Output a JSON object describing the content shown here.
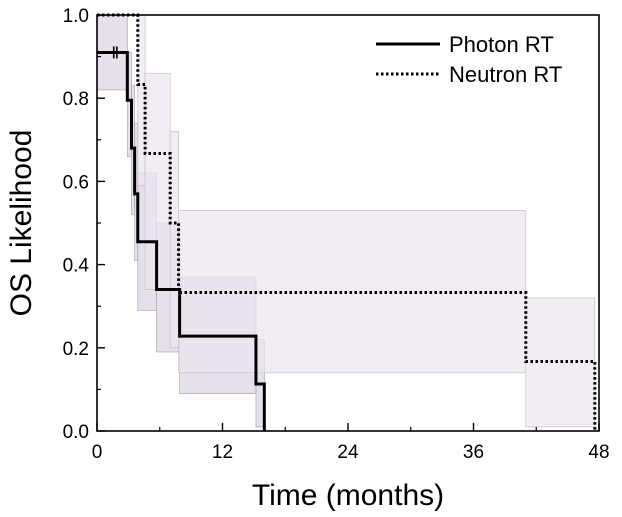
{
  "chart_data": {
    "type": "line",
    "subtype": "kaplan-meier-step",
    "title": "",
    "xlabel": "Time (months)",
    "ylabel": "OS Likelihood",
    "xlim": [
      0,
      48
    ],
    "ylim": [
      0,
      1.0
    ],
    "x_ticks": [
      0,
      12,
      24,
      36,
      48
    ],
    "x_tick_labels": [
      "0",
      "12",
      "24",
      "36",
      "48"
    ],
    "y_ticks": [
      0,
      0.2,
      0.4,
      0.6,
      0.8,
      1.0
    ],
    "y_tick_labels": [
      "0.0",
      "0.2",
      "0.4",
      "0.6",
      "0.8",
      "1.0"
    ],
    "legend_position": "top-right",
    "series": [
      {
        "name": "Photon RT",
        "style": "solid",
        "color": "#000000",
        "band_color": "#ddd6e4",
        "band_stroke": "#b0b0b0",
        "steps_x": [
          0,
          2.9,
          3.3,
          3.6,
          3.9,
          5.7,
          7.9,
          15.2,
          16.0
        ],
        "steps_y": [
          0.91,
          0.795,
          0.68,
          0.57,
          0.455,
          0.34,
          0.228,
          0.113,
          0.0
        ],
        "ci_lower": [
          0.82,
          0.66,
          0.52,
          0.41,
          0.29,
          0.19,
          0.09,
          0.01,
          0.0
        ],
        "ci_upper": [
          1.0,
          0.91,
          0.83,
          0.74,
          0.62,
          0.5,
          0.37,
          0.22,
          0.0
        ],
        "censor_x": [
          1.6,
          1.9
        ],
        "censor_y": [
          0.91,
          0.91
        ]
      },
      {
        "name": "Neutron RT",
        "style": "dotted",
        "color": "#000000",
        "band_color": "#ede6f1",
        "band_stroke": "#c8c8c8",
        "steps_x": [
          0,
          3.9,
          4.6,
          7.0,
          7.8,
          41.0,
          47.6
        ],
        "steps_y": [
          1.0,
          0.833,
          0.667,
          0.5,
          0.333,
          0.167,
          0.0
        ],
        "ci_lower": [
          1.0,
          0.59,
          0.34,
          0.2,
          0.14,
          0.01,
          0.0
        ],
        "ci_upper": [
          1.0,
          1.0,
          0.86,
          0.72,
          0.53,
          0.32,
          0.0
        ],
        "censor_x": [],
        "censor_y": []
      }
    ]
  }
}
